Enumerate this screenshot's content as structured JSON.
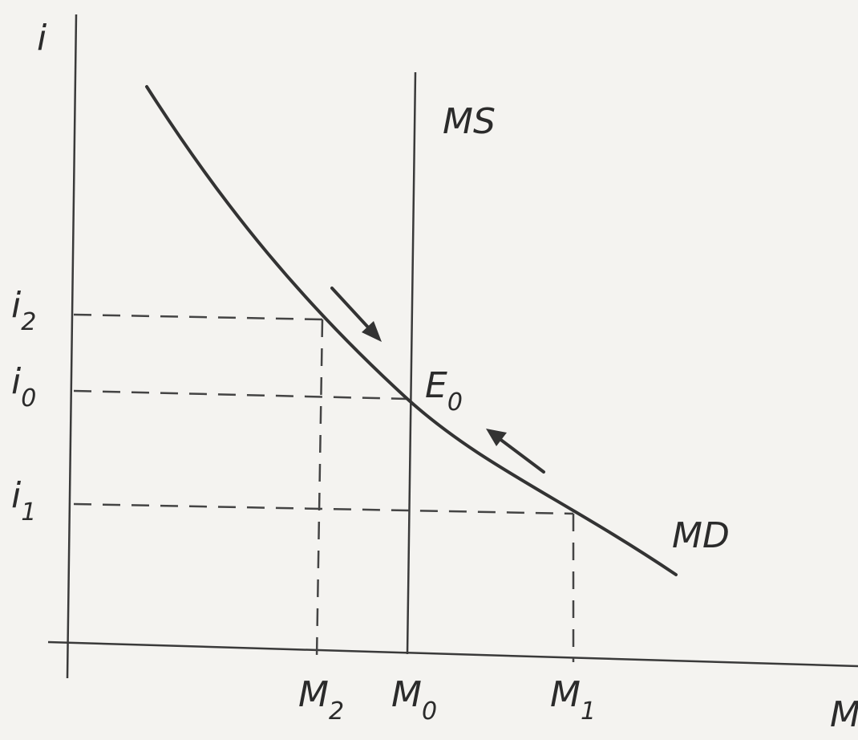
{
  "axes": {
    "y_label": "i",
    "x_label": "M"
  },
  "curves": {
    "money_supply_label": "MS",
    "money_demand_label": "MD"
  },
  "equilibrium": {
    "point_main": "E",
    "point_sub": "0"
  },
  "interest_rates": [
    {
      "main": "i",
      "sub": "2"
    },
    {
      "main": "i",
      "sub": "0"
    },
    {
      "main": "i",
      "sub": "1"
    }
  ],
  "money_quantities": [
    {
      "main": "M",
      "sub": "2"
    },
    {
      "main": "M",
      "sub": "0"
    },
    {
      "main": "M",
      "sub": "1"
    }
  ],
  "adjustment_arrows": [
    "down-right-arrow",
    "up-left-arrow"
  ]
}
